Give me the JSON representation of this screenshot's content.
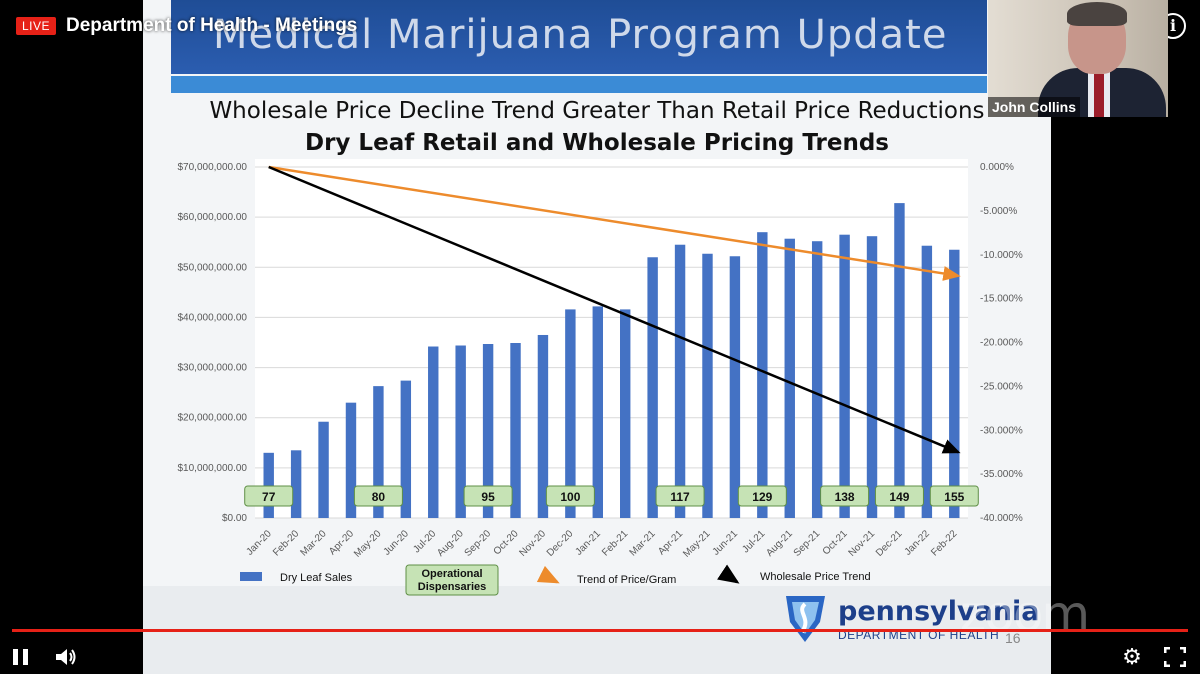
{
  "player": {
    "live_label": "LIVE",
    "title": "Department of Health - Meetings",
    "info_icon": "info-icon",
    "accent_color": "#e62117",
    "webcam_name": "John Collins",
    "watermark": "zoom",
    "controls": [
      "pause-icon",
      "volume-icon",
      "settings-icon",
      "fullscreen-icon"
    ]
  },
  "slide": {
    "banner_title": "Medical Marijuana Program Update",
    "subtitle": "Wholesale Price Decline Trend Greater Than Retail Price Reductions",
    "logo_name": "pennsylvania",
    "logo_dept": "DEPARTMENT OF HEALTH",
    "page_number": "16"
  },
  "chart_data": {
    "type": "bar",
    "title": "Dry Leaf Retail and Wholesale Pricing Trends",
    "categories": [
      "Jan-20",
      "Feb-20",
      "Mar-20",
      "Apr-20",
      "May-20",
      "Jun-20",
      "Jul-20",
      "Aug-20",
      "Sep-20",
      "Oct-20",
      "Nov-20",
      "Dec-20",
      "Jan-21",
      "Feb-21",
      "Mar-21",
      "Apr-21",
      "May-21",
      "Jun-21",
      "Jul-21",
      "Aug-21",
      "Sep-21",
      "Oct-21",
      "Nov-21",
      "Dec-21",
      "Jan-22",
      "Feb-22"
    ],
    "series": [
      {
        "name": "Dry Leaf Sales",
        "color": "#4472c4",
        "values": [
          13000000,
          13500000,
          19200000,
          23000000,
          26300000,
          27400000,
          34200000,
          34400000,
          34700000,
          34900000,
          36500000,
          41600000,
          42200000,
          41600000,
          52000000,
          54500000,
          52700000,
          52200000,
          57000000,
          55700000,
          55200000,
          56500000,
          56200000,
          62800000,
          54300000,
          53500000
        ]
      }
    ],
    "trend_lines": [
      {
        "name": "Trend of Price/Gram",
        "color": "#ed8b2c",
        "start_month": "Jan-20",
        "start_pct": 0.0,
        "end_month": "Feb-22",
        "end_pct": -12.4
      },
      {
        "name": "Wholesale Price Trend",
        "color": "#000000",
        "start_month": "Jan-20",
        "start_pct": 0.0,
        "end_month": "Feb-22",
        "end_pct": -32.5
      }
    ],
    "dispensaries": {
      "name": "Operational Dispensaries",
      "items": [
        {
          "month": "Jan-20",
          "label": "77"
        },
        {
          "month": "May-20",
          "label": "80"
        },
        {
          "month": "Sep-20",
          "label": "95"
        },
        {
          "month": "Dec-20",
          "label": "100"
        },
        {
          "month": "Apr-21",
          "label": "117"
        },
        {
          "month": "Jul-21",
          "label": "129"
        },
        {
          "month": "Oct-21",
          "label": "138"
        },
        {
          "month": "Dec-21",
          "label": "149"
        },
        {
          "month": "Feb-22",
          "label": "155"
        }
      ]
    },
    "y_left": {
      "ticks": [
        0,
        10000000,
        20000000,
        30000000,
        40000000,
        50000000,
        60000000,
        70000000
      ],
      "tick_labels": [
        "$0.00",
        "$10,000,000.00",
        "$20,000,000.00",
        "$30,000,000.00",
        "$40,000,000.00",
        "$50,000,000.00",
        "$60,000,000.00",
        "$70,000,000.00"
      ],
      "ylim": [
        0,
        70000000
      ]
    },
    "y_right": {
      "ticks": [
        0,
        -5,
        -10,
        -15,
        -20,
        -25,
        -30,
        -35,
        -40
      ],
      "tick_labels": [
        "0.000%",
        "-5.000%",
        "-10.000%",
        "-15.000%",
        "-20.000%",
        "-25.000%",
        "-30.000%",
        "-35.000%",
        "-40.000%"
      ],
      "ylim": [
        -40,
        0
      ]
    },
    "grid": true,
    "legend_position": "bottom",
    "legend": [
      "Dry Leaf Sales",
      "Operational Dispensaries",
      "Trend of Price/Gram",
      "Wholesale Price Trend"
    ]
  }
}
